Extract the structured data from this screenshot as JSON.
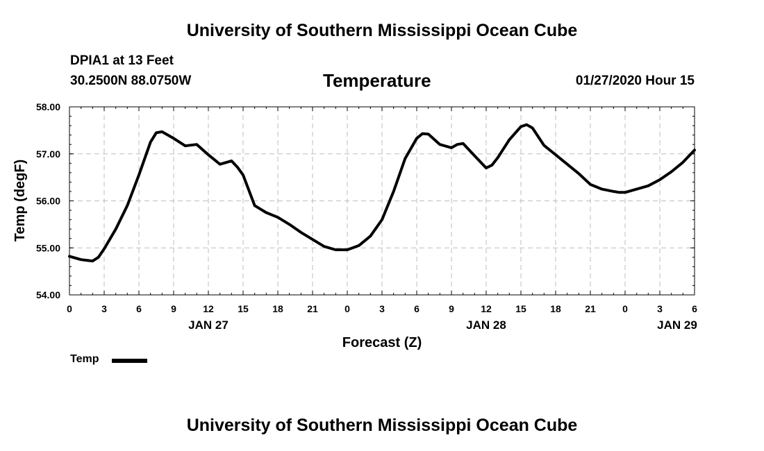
{
  "header": {
    "top_title": "University of Southern Mississippi Ocean Cube",
    "station": "DPIA1 at 13 Feet",
    "coords": "30.2500N 88.0750W",
    "datetime": "01/27/2020 Hour 15"
  },
  "footer": {
    "bottom_title": "University of Southern Mississippi Ocean Cube"
  },
  "legend": {
    "label": "Temp"
  },
  "chart_data": {
    "type": "line",
    "title": "Temperature",
    "xlabel": "Forecast (Z)",
    "ylabel": "Temp (degF)",
    "ylim": [
      54.0,
      58.0
    ],
    "xlim": [
      0,
      54
    ],
    "x_unit": "hours from 01/27 00Z",
    "yticks": [
      "54.00",
      "55.00",
      "56.00",
      "57.00",
      "58.00"
    ],
    "xticks": [
      {
        "x": 0,
        "label": "0"
      },
      {
        "x": 3,
        "label": "3"
      },
      {
        "x": 6,
        "label": "6"
      },
      {
        "x": 9,
        "label": "9"
      },
      {
        "x": 12,
        "label": "12"
      },
      {
        "x": 15,
        "label": "15"
      },
      {
        "x": 18,
        "label": "18"
      },
      {
        "x": 21,
        "label": "21"
      },
      {
        "x": 24,
        "label": "0"
      },
      {
        "x": 27,
        "label": "3"
      },
      {
        "x": 30,
        "label": "6"
      },
      {
        "x": 33,
        "label": "9"
      },
      {
        "x": 36,
        "label": "12"
      },
      {
        "x": 39,
        "label": "15"
      },
      {
        "x": 42,
        "label": "18"
      },
      {
        "x": 45,
        "label": "21"
      },
      {
        "x": 48,
        "label": "0"
      },
      {
        "x": 51,
        "label": "3"
      },
      {
        "x": 54,
        "label": "6"
      }
    ],
    "date_labels": [
      {
        "x": 12,
        "label": "JAN 27"
      },
      {
        "x": 36,
        "label": "JAN 28"
      },
      {
        "x": 52.5,
        "label": "JAN 29"
      }
    ],
    "grid": true,
    "legend_position": "bottom-left",
    "series": [
      {
        "name": "Temp",
        "color": "#000000",
        "x": [
          0,
          1,
          2,
          2.5,
          3,
          4,
          5,
          6,
          7,
          7.5,
          8,
          9,
          10,
          11,
          12,
          13,
          14,
          14.5,
          15,
          16,
          17,
          18,
          19,
          20,
          21,
          22,
          23,
          24,
          25,
          26,
          27,
          28,
          29,
          30,
          30.5,
          31,
          32,
          33,
          33.5,
          34,
          35,
          36,
          36.5,
          37,
          38,
          39,
          39.5,
          40,
          41,
          42,
          43,
          44,
          45,
          46,
          47,
          47.5,
          48,
          49,
          50,
          51,
          52,
          53,
          54
        ],
        "y": [
          54.82,
          54.75,
          54.72,
          54.8,
          54.98,
          55.4,
          55.9,
          56.55,
          57.25,
          57.45,
          57.47,
          57.33,
          57.17,
          57.2,
          56.98,
          56.78,
          56.85,
          56.72,
          56.55,
          55.9,
          55.75,
          55.65,
          55.5,
          55.33,
          55.18,
          55.03,
          54.96,
          54.96,
          55.05,
          55.25,
          55.6,
          56.2,
          56.9,
          57.33,
          57.43,
          57.42,
          57.2,
          57.13,
          57.2,
          57.22,
          56.96,
          56.7,
          56.76,
          56.92,
          57.3,
          57.58,
          57.62,
          57.55,
          57.18,
          56.98,
          56.78,
          56.58,
          56.35,
          56.25,
          56.2,
          56.18,
          56.18,
          56.25,
          56.32,
          56.45,
          56.62,
          56.82,
          57.08
        ]
      }
    ]
  }
}
